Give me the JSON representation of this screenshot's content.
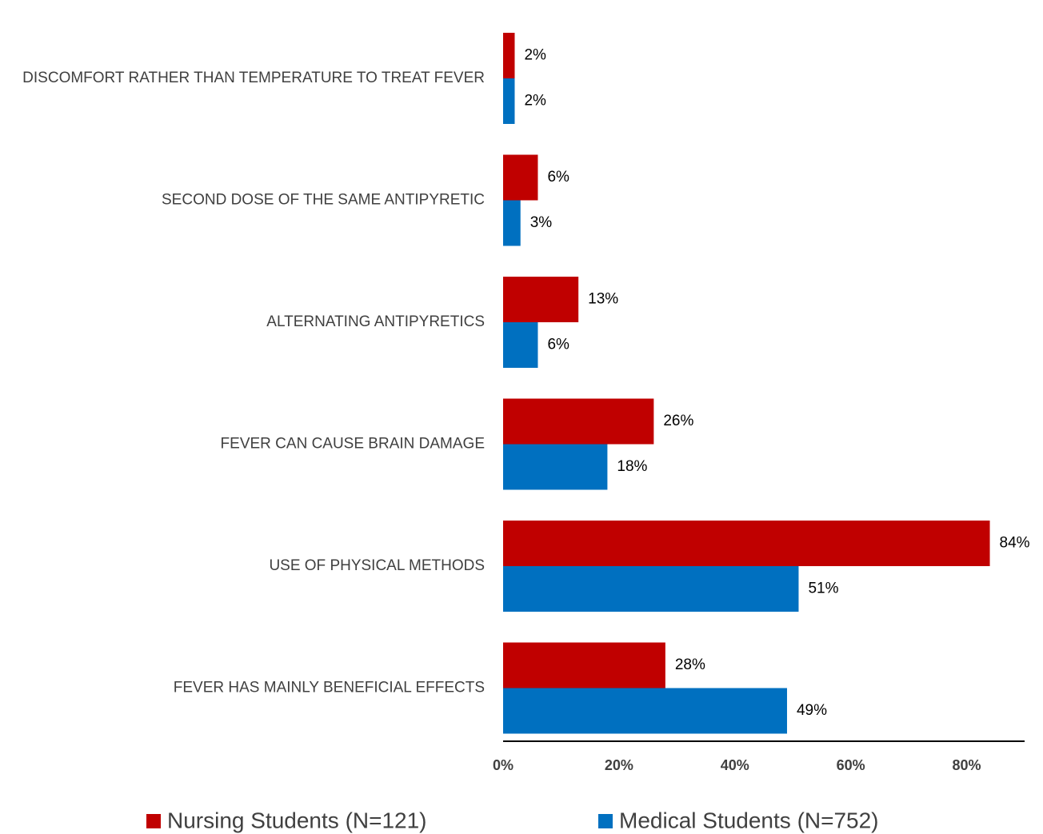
{
  "chart_data": {
    "type": "hbar",
    "categories": [
      "DISCOMFORT RATHER THAN TEMPERATURE TO TREAT FEVER",
      "SECOND DOSE OF THE SAME ANTIPYRETIC",
      "ALTERNATING ANTIPYRETICS",
      "FEVER CAN CAUSE BRAIN DAMAGE",
      "USE OF PHYSICAL METHODS",
      "FEVER HAS MAINLY BENEFICIAL EFFECTS"
    ],
    "series": [
      {
        "name": "Nursing Students (N=121)",
        "color": "#c00000",
        "values": [
          2,
          6,
          13,
          26,
          84,
          28
        ],
        "value_labels": [
          "2%",
          "6%",
          "13%",
          "26%",
          "84%",
          "28%"
        ]
      },
      {
        "name": "Medical Students (N=752)",
        "color": "#0070c0",
        "values": [
          2,
          3,
          6,
          18,
          51,
          49
        ],
        "value_labels": [
          "2%",
          "3%",
          "6%",
          "18%",
          "51%",
          "49%"
        ]
      }
    ],
    "xlim": [
      0,
      90
    ],
    "xticks": [
      {
        "value": 0,
        "label": "0%"
      },
      {
        "value": 20,
        "label": "20%"
      },
      {
        "value": 40,
        "label": "40%"
      },
      {
        "value": 60,
        "label": "60%"
      },
      {
        "value": 80,
        "label": "80%"
      }
    ],
    "legend": "bottom"
  }
}
